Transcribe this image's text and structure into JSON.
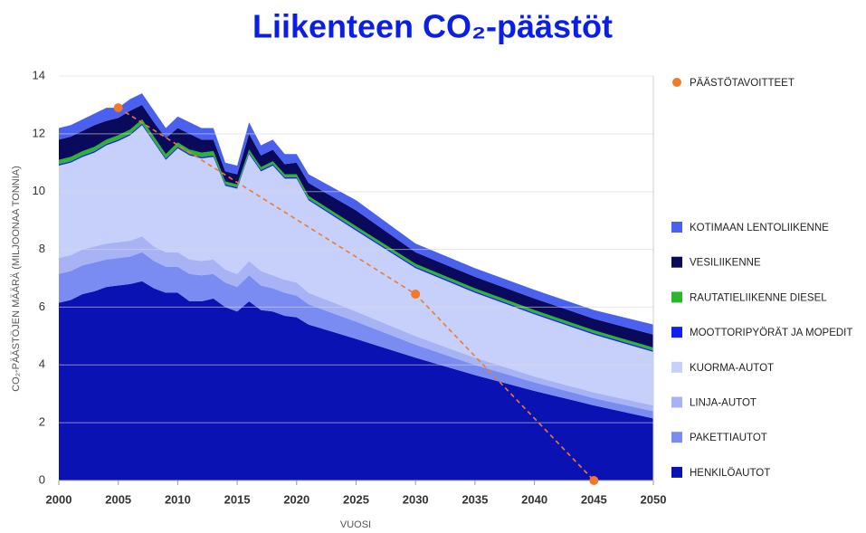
{
  "chart_data": {
    "type": "stacked_area",
    "title": "Liikenteen CO₂-päästöt",
    "xlabel": "VUOSI",
    "ylabel": "CO₂-PÄÄSTÖJEN MÄÄRÄ (MILJOONAA TONNIA)",
    "x": [
      2000,
      2001,
      2002,
      2003,
      2004,
      2005,
      2006,
      2007,
      2008,
      2009,
      2010,
      2011,
      2012,
      2013,
      2014,
      2015,
      2016,
      2017,
      2018,
      2019,
      2020,
      2021,
      2025,
      2030,
      2035,
      2040,
      2045,
      2050
    ],
    "xlim": [
      2000,
      2050
    ],
    "xticks": [
      2000,
      2005,
      2010,
      2015,
      2020,
      2025,
      2030,
      2035,
      2040,
      2045,
      2050
    ],
    "ylim": [
      0,
      14
    ],
    "yticks": [
      0,
      2,
      4,
      6,
      8,
      10,
      12,
      14
    ],
    "grid": true,
    "series": [
      {
        "name": "HENKILÖAUTOT",
        "color": "#0b12b3",
        "values": [
          6.15,
          6.25,
          6.45,
          6.55,
          6.7,
          6.75,
          6.8,
          6.9,
          6.65,
          6.5,
          6.5,
          6.2,
          6.2,
          6.3,
          6.0,
          5.85,
          6.2,
          5.9,
          5.85,
          5.7,
          5.65,
          5.4,
          4.9,
          4.25,
          3.65,
          3.1,
          2.6,
          2.15
        ]
      },
      {
        "name": "PAKETTIAUTOT",
        "color": "#7a8cf2",
        "values": [
          1.0,
          1.0,
          1.0,
          1.0,
          0.95,
          0.95,
          0.95,
          1.0,
          0.95,
          0.9,
          0.9,
          0.95,
          0.9,
          0.85,
          0.85,
          0.85,
          0.9,
          0.85,
          0.8,
          0.8,
          0.75,
          0.7,
          0.6,
          0.45,
          0.35,
          0.3,
          0.25,
          0.25
        ]
      },
      {
        "name": "LINJA-AUTOT",
        "color": "#a7b3f4",
        "values": [
          0.55,
          0.55,
          0.55,
          0.55,
          0.55,
          0.55,
          0.55,
          0.55,
          0.5,
          0.5,
          0.5,
          0.5,
          0.5,
          0.5,
          0.45,
          0.45,
          0.5,
          0.5,
          0.45,
          0.45,
          0.45,
          0.4,
          0.35,
          0.3,
          0.25,
          0.2,
          0.2,
          0.2
        ]
      },
      {
        "name": "KUORMA-AUTOT",
        "color": "#c7d0fa",
        "values": [
          3.2,
          3.2,
          3.2,
          3.25,
          3.4,
          3.5,
          3.65,
          3.85,
          3.6,
          3.2,
          3.6,
          3.6,
          3.55,
          3.55,
          2.9,
          2.95,
          3.7,
          3.45,
          3.8,
          3.5,
          3.6,
          3.2,
          2.8,
          2.35,
          2.25,
          2.15,
          2.0,
          1.85
        ]
      },
      {
        "name": "MOOTTORIPYÖRÄT JA MOPEDIT",
        "color": "#1020f5",
        "values": [
          0.05,
          0.05,
          0.05,
          0.05,
          0.05,
          0.05,
          0.05,
          0.05,
          0.05,
          0.05,
          0.05,
          0.05,
          0.05,
          0.05,
          0.05,
          0.05,
          0.05,
          0.05,
          0.05,
          0.05,
          0.05,
          0.05,
          0.05,
          0.05,
          0.05,
          0.05,
          0.05,
          0.05
        ]
      },
      {
        "name": "RAUTATIELIIKENNE DIESEL",
        "color": "#2db52d",
        "values": [
          0.15,
          0.15,
          0.15,
          0.15,
          0.15,
          0.15,
          0.15,
          0.15,
          0.15,
          0.15,
          0.15,
          0.15,
          0.15,
          0.15,
          0.1,
          0.1,
          0.1,
          0.1,
          0.1,
          0.1,
          0.1,
          0.1,
          0.1,
          0.1,
          0.1,
          0.1,
          0.1,
          0.1
        ]
      },
      {
        "name": "VESILIIKENNE",
        "color": "#0a0a5c",
        "values": [
          0.7,
          0.7,
          0.7,
          0.75,
          0.65,
          0.6,
          0.65,
          0.5,
          0.5,
          0.55,
          0.5,
          0.55,
          0.45,
          0.4,
          0.35,
          0.35,
          0.55,
          0.4,
          0.4,
          0.35,
          0.4,
          0.45,
          0.55,
          0.4,
          0.4,
          0.4,
          0.4,
          0.45
        ]
      },
      {
        "name": "KOTIMAAN LENTOLIIKENNE",
        "color": "#4a60ee",
        "values": [
          0.4,
          0.4,
          0.4,
          0.4,
          0.45,
          0.35,
          0.4,
          0.4,
          0.4,
          0.35,
          0.4,
          0.4,
          0.4,
          0.4,
          0.3,
          0.3,
          0.4,
          0.35,
          0.35,
          0.35,
          0.3,
          0.3,
          0.35,
          0.3,
          0.3,
          0.3,
          0.3,
          0.35
        ]
      }
    ],
    "targets": {
      "name": "PÄÄSTÖTAVOITTEET",
      "color": "#f07a2a",
      "x": [
        2005,
        2030,
        2045
      ],
      "values": [
        12.9,
        6.45,
        0
      ]
    }
  }
}
